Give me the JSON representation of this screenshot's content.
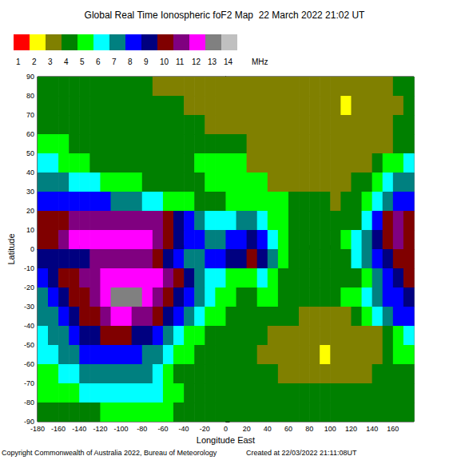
{
  "chart_data": {
    "type": "heatmap",
    "title": "Global Real Time Ionospheric foF2 Map  22 March 2022 21:02 UT",
    "x_label": "Longitude East",
    "y_label": "Latitude",
    "xlim": [
      -180,
      180
    ],
    "ylim": [
      -90,
      90
    ],
    "xticks": [
      -180,
      -160,
      -140,
      -120,
      -100,
      -80,
      -60,
      -40,
      -20,
      0,
      20,
      40,
      60,
      80,
      100,
      120,
      140,
      160
    ],
    "yticks": [
      -90,
      -80,
      -70,
      -60,
      -50,
      -40,
      -30,
      -20,
      -10,
      0,
      10,
      20,
      30,
      40,
      50,
      60,
      70,
      80,
      90
    ],
    "grid": false,
    "cells": {
      "x": [
        -175,
        -165,
        -155,
        -145,
        -135,
        -125,
        -115,
        -105,
        -95,
        -85,
        -75,
        -65,
        -55,
        -45,
        -35,
        -25,
        -15,
        -5,
        5,
        15,
        25,
        35,
        45,
        55,
        65,
        75,
        85,
        95,
        105,
        115,
        125,
        135,
        145,
        155,
        165,
        175
      ],
      "y": [
        85,
        75,
        65,
        55,
        45,
        35,
        25,
        15,
        5,
        -5,
        -15,
        -25,
        -35,
        -45,
        -55,
        -65,
        -75,
        -85
      ],
      "values": [
        [
          4,
          4,
          4,
          4,
          4,
          4,
          4,
          4,
          4,
          4,
          4,
          3,
          3,
          3,
          3,
          3,
          3,
          3,
          3,
          3,
          3,
          3,
          3,
          3,
          3,
          3,
          3,
          3,
          3,
          3,
          3,
          3,
          3,
          3,
          4,
          4
        ],
        [
          4,
          4,
          4,
          4,
          4,
          4,
          4,
          4,
          4,
          4,
          4,
          4,
          4,
          4,
          3,
          3,
          3,
          3,
          3,
          3,
          3,
          3,
          3,
          3,
          3,
          3,
          3,
          3,
          3,
          2,
          3,
          3,
          3,
          3,
          3,
          4
        ],
        [
          4,
          4,
          4,
          4,
          4,
          4,
          4,
          4,
          4,
          4,
          4,
          4,
          4,
          4,
          4,
          4,
          3,
          3,
          3,
          3,
          3,
          3,
          3,
          3,
          3,
          3,
          3,
          3,
          3,
          3,
          3,
          3,
          3,
          3,
          4,
          4
        ],
        [
          5,
          5,
          5,
          4,
          4,
          4,
          4,
          4,
          4,
          4,
          4,
          4,
          4,
          4,
          4,
          4,
          4,
          4,
          4,
          4,
          3,
          3,
          3,
          3,
          3,
          3,
          3,
          3,
          3,
          3,
          3,
          3,
          3,
          3,
          4,
          4
        ],
        [
          6,
          6,
          5,
          5,
          5,
          4,
          4,
          4,
          4,
          4,
          4,
          4,
          4,
          4,
          4,
          5,
          5,
          5,
          5,
          5,
          3,
          3,
          3,
          3,
          3,
          3,
          3,
          3,
          3,
          3,
          3,
          3,
          4,
          5,
          5,
          6
        ],
        [
          7,
          7,
          7,
          6,
          6,
          6,
          5,
          5,
          5,
          5,
          4,
          4,
          4,
          4,
          4,
          4,
          5,
          5,
          5,
          5,
          5,
          5,
          3,
          3,
          3,
          3,
          3,
          3,
          3,
          3,
          4,
          4,
          5,
          6,
          7,
          7
        ],
        [
          8,
          8,
          8,
          8,
          8,
          8,
          8,
          7,
          7,
          7,
          6,
          6,
          5,
          5,
          5,
          4,
          4,
          4,
          5,
          5,
          5,
          5,
          5,
          5,
          4,
          4,
          4,
          4,
          3,
          4,
          4,
          5,
          6,
          7,
          8,
          8
        ],
        [
          10,
          10,
          10,
          11,
          11,
          11,
          11,
          11,
          11,
          11,
          11,
          11,
          10,
          9,
          8,
          7,
          6,
          6,
          6,
          7,
          7,
          6,
          5,
          5,
          4,
          4,
          4,
          4,
          4,
          4,
          4,
          6,
          8,
          10,
          11,
          10
        ],
        [
          10,
          10,
          11,
          12,
          12,
          12,
          12,
          12,
          12,
          12,
          12,
          11,
          10,
          9,
          8,
          8,
          7,
          7,
          8,
          8,
          9,
          8,
          6,
          5,
          4,
          4,
          4,
          4,
          4,
          5,
          6,
          7,
          9,
          10,
          11,
          10
        ],
        [
          9,
          9,
          9,
          9,
          9,
          11,
          11,
          11,
          11,
          11,
          11,
          10,
          9,
          8,
          7,
          7,
          8,
          8,
          9,
          9,
          10,
          9,
          7,
          5,
          4,
          4,
          4,
          4,
          4,
          4,
          6,
          7,
          8,
          9,
          10,
          10
        ],
        [
          8,
          9,
          10,
          10,
          11,
          11,
          12,
          12,
          12,
          12,
          12,
          12,
          11,
          10,
          9,
          7,
          6,
          6,
          5,
          5,
          5,
          6,
          5,
          4,
          4,
          4,
          4,
          4,
          4,
          4,
          4,
          5,
          7,
          8,
          9,
          10
        ],
        [
          7,
          8,
          9,
          10,
          10,
          11,
          12,
          13,
          13,
          13,
          12,
          11,
          10,
          9,
          8,
          7,
          6,
          5,
          5,
          4,
          4,
          5,
          5,
          4,
          4,
          4,
          4,
          4,
          4,
          5,
          5,
          6,
          7,
          8,
          8,
          9
        ],
        [
          7,
          7,
          8,
          9,
          10,
          10,
          11,
          12,
          12,
          11,
          11,
          10,
          9,
          8,
          7,
          6,
          5,
          5,
          4,
          4,
          4,
          4,
          4,
          4,
          4,
          3,
          3,
          3,
          3,
          3,
          4,
          5,
          6,
          7,
          8,
          8
        ],
        [
          6,
          7,
          7,
          8,
          9,
          9,
          10,
          10,
          10,
          9,
          9,
          8,
          7,
          6,
          5,
          5,
          4,
          4,
          4,
          4,
          4,
          4,
          3,
          3,
          3,
          3,
          3,
          3,
          3,
          3,
          3,
          3,
          3,
          4,
          5,
          6
        ],
        [
          6,
          6,
          7,
          7,
          8,
          8,
          8,
          8,
          8,
          8,
          7,
          7,
          6,
          5,
          5,
          4,
          4,
          4,
          4,
          4,
          4,
          3,
          3,
          3,
          3,
          3,
          3,
          2,
          3,
          3,
          3,
          3,
          3,
          4,
          5,
          5
        ],
        [
          5,
          5,
          6,
          6,
          7,
          7,
          7,
          7,
          7,
          7,
          7,
          6,
          5,
          4,
          4,
          4,
          4,
          4,
          4,
          4,
          4,
          4,
          4,
          3,
          3,
          3,
          3,
          3,
          3,
          3,
          3,
          3,
          4,
          4,
          4,
          4
        ],
        [
          5,
          5,
          5,
          5,
          6,
          6,
          6,
          6,
          6,
          6,
          6,
          6,
          5,
          5,
          4,
          4,
          4,
          4,
          4,
          4,
          4,
          4,
          4,
          4,
          4,
          4,
          4,
          4,
          4,
          4,
          4,
          4,
          4,
          4,
          4,
          4
        ],
        [
          4,
          4,
          4,
          4,
          4,
          4,
          5,
          5,
          5,
          5,
          5,
          5,
          5,
          4,
          4,
          4,
          4,
          4,
          4,
          4,
          4,
          4,
          4,
          4,
          4,
          4,
          4,
          4,
          4,
          4,
          4,
          4,
          4,
          4,
          4,
          4
        ]
      ]
    },
    "colorbar": {
      "ticks": [
        1,
        2,
        3,
        4,
        5,
        6,
        7,
        8,
        9,
        10,
        11,
        12,
        13,
        14
      ],
      "colors": [
        "#ff0000",
        "#ffff00",
        "#808000",
        "#008000",
        "#00ff00",
        "#00ffff",
        "#008080",
        "#0000ff",
        "#000080",
        "#800000",
        "#800080",
        "#ff00ff",
        "#808080",
        "#c0c0c0"
      ],
      "label": "MHz"
    },
    "footer": [
      "Copyright Commonwealth of Australia 2022, Bureau of Meteorology",
      "Created at 22/03/2022 21:11:08UT"
    ]
  }
}
